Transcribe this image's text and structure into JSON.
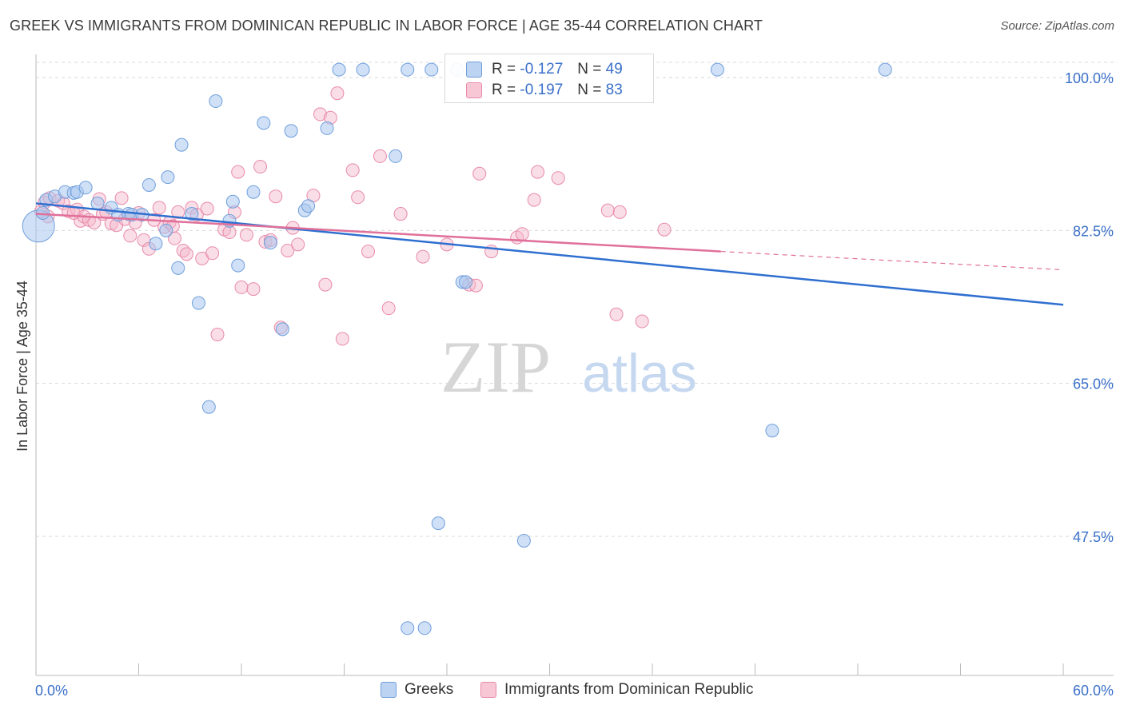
{
  "title": "GREEK VS IMMIGRANTS FROM DOMINICAN REPUBLIC IN LABOR FORCE | AGE 35-44 CORRELATION CHART",
  "source": "Source: ZipAtlas.com",
  "watermark": {
    "zip": "ZIP",
    "atlas": "atlas"
  },
  "colors": {
    "blue_fill": "#a9c6ee",
    "blue_stroke": "#6f9fdc",
    "blue_line": "#2f6fd0",
    "pink_fill": "#f5b6ca",
    "pink_stroke": "#e88aa9",
    "pink_line": "#e0709a",
    "axis_label": "#3a6fc9",
    "grid": "#d9d9d9"
  },
  "stats": {
    "r_label": "R =",
    "n_label": "N =",
    "rows": [
      {
        "series": "Greeks",
        "r": "-0.127",
        "n": "49"
      },
      {
        "series": "Immigrants from Dominican Republic",
        "r": "-0.197",
        "n": "83"
      }
    ]
  },
  "legend": [
    "Greeks",
    "Immigrants from Dominican Republic"
  ],
  "chart_data": {
    "type": "scatter",
    "title": "GREEK VS IMMIGRANTS FROM DOMINICAN REPUBLIC IN LABOR FORCE | AGE 35-44 CORRELATION CHART",
    "xlabel": "",
    "ylabel": "In Labor Force | Age 35-44",
    "xlim": [
      0,
      60
    ],
    "ylim": [
      30,
      101.5
    ],
    "x_tick_labels": [
      "0.0%",
      "60.0%"
    ],
    "y_ticks": [
      100.0,
      82.5,
      65.0,
      47.5
    ],
    "y_tick_labels": [
      "100.0%",
      "82.5%",
      "65.0%",
      "47.5%"
    ],
    "grid": true,
    "legend_position": "bottom",
    "series": [
      {
        "name": "Greeks",
        "r": -0.127,
        "n": 49,
        "trend": {
          "x": [
            0,
            60
          ],
          "y": [
            85.6,
            74.0
          ]
        },
        "points": [
          [
            0.4,
            84.5
          ],
          [
            0.6,
            86.0
          ],
          [
            1.1,
            86.4
          ],
          [
            1.7,
            86.9
          ],
          [
            2.2,
            86.8
          ],
          [
            2.4,
            86.9
          ],
          [
            2.9,
            87.4
          ],
          [
            3.6,
            85.6
          ],
          [
            4.4,
            85.1
          ],
          [
            4.8,
            84.3
          ],
          [
            5.4,
            84.4
          ],
          [
            5.6,
            84.3
          ],
          [
            6.2,
            84.3
          ],
          [
            6.6,
            87.7
          ],
          [
            7.0,
            81.0
          ],
          [
            7.6,
            82.5
          ],
          [
            7.7,
            88.6
          ],
          [
            8.3,
            78.2
          ],
          [
            8.5,
            92.3
          ],
          [
            9.1,
            84.4
          ],
          [
            9.5,
            74.2
          ],
          [
            10.5,
            97.3
          ],
          [
            11.3,
            83.6
          ],
          [
            11.5,
            85.8
          ],
          [
            11.8,
            78.5
          ],
          [
            12.7,
            86.9
          ],
          [
            13.3,
            94.8
          ],
          [
            13.7,
            81.1
          ],
          [
            14.4,
            71.2
          ],
          [
            14.9,
            93.9
          ],
          [
            15.7,
            84.8
          ],
          [
            15.9,
            85.3
          ],
          [
            17.0,
            94.2
          ],
          [
            17.7,
            100.9
          ],
          [
            19.1,
            100.9
          ],
          [
            21.0,
            91.0
          ],
          [
            21.7,
            100.9
          ],
          [
            23.1,
            100.9
          ],
          [
            23.5,
            49.0
          ],
          [
            24.9,
            76.6
          ],
          [
            25.1,
            76.6
          ],
          [
            28.5,
            47.0
          ],
          [
            39.8,
            100.9
          ],
          [
            43.0,
            59.6
          ],
          [
            49.6,
            100.9
          ],
          [
            21.7,
            37.0
          ],
          [
            22.7,
            37.0
          ],
          [
            10.1,
            62.3
          ],
          [
            24.6,
            100.9
          ]
        ]
      },
      {
        "name": "Immigrants from Dominican Republic",
        "r": -0.197,
        "n": 83,
        "trend": {
          "x": [
            0,
            40
          ],
          "y": [
            84.4,
            80.1
          ]
        },
        "trend_dashed": {
          "x": [
            40,
            60
          ],
          "y": [
            80.1,
            78.0
          ]
        },
        "points": [
          [
            0.3,
            84.7
          ],
          [
            0.5,
            85.7
          ],
          [
            0.8,
            86.2
          ],
          [
            1.3,
            85.9
          ],
          [
            1.6,
            85.6
          ],
          [
            1.9,
            84.7
          ],
          [
            2.4,
            84.9
          ],
          [
            2.6,
            83.6
          ],
          [
            2.8,
            84.1
          ],
          [
            3.1,
            83.7
          ],
          [
            3.4,
            83.4
          ],
          [
            3.7,
            86.1
          ],
          [
            3.9,
            84.4
          ],
          [
            4.1,
            84.6
          ],
          [
            4.4,
            83.3
          ],
          [
            4.7,
            83.1
          ],
          [
            5.0,
            86.2
          ],
          [
            5.2,
            83.8
          ],
          [
            5.5,
            81.9
          ],
          [
            5.8,
            83.4
          ],
          [
            6.0,
            84.5
          ],
          [
            6.3,
            81.4
          ],
          [
            6.6,
            80.4
          ],
          [
            6.9,
            83.7
          ],
          [
            7.2,
            85.1
          ],
          [
            7.5,
            82.9
          ],
          [
            7.8,
            83.4
          ],
          [
            8.1,
            81.6
          ],
          [
            8.3,
            84.6
          ],
          [
            8.6,
            80.2
          ],
          [
            8.8,
            79.8
          ],
          [
            9.1,
            85.1
          ],
          [
            9.4,
            84.3
          ],
          [
            9.7,
            79.3
          ],
          [
            10.0,
            85.0
          ],
          [
            10.3,
            79.9
          ],
          [
            10.6,
            70.6
          ],
          [
            11.0,
            82.6
          ],
          [
            11.3,
            82.3
          ],
          [
            11.6,
            84.6
          ],
          [
            11.8,
            89.2
          ],
          [
            12.0,
            76.0
          ],
          [
            12.3,
            82.0
          ],
          [
            12.7,
            75.8
          ],
          [
            13.1,
            89.8
          ],
          [
            13.4,
            81.2
          ],
          [
            13.7,
            81.4
          ],
          [
            14.0,
            86.4
          ],
          [
            14.3,
            71.4
          ],
          [
            14.7,
            80.2
          ],
          [
            15.0,
            82.8
          ],
          [
            15.3,
            80.9
          ],
          [
            16.2,
            86.5
          ],
          [
            16.6,
            95.8
          ],
          [
            16.9,
            76.3
          ],
          [
            17.2,
            95.4
          ],
          [
            17.6,
            98.2
          ],
          [
            17.9,
            70.1
          ],
          [
            18.5,
            89.4
          ],
          [
            18.8,
            86.3
          ],
          [
            19.4,
            80.1
          ],
          [
            20.1,
            91.0
          ],
          [
            20.6,
            73.6
          ],
          [
            21.3,
            84.4
          ],
          [
            22.6,
            79.5
          ],
          [
            24.0,
            80.9
          ],
          [
            25.3,
            76.3
          ],
          [
            25.7,
            76.2
          ],
          [
            25.9,
            89.0
          ],
          [
            26.6,
            80.1
          ],
          [
            28.1,
            81.7
          ],
          [
            28.4,
            82.1
          ],
          [
            29.1,
            86.0
          ],
          [
            29.3,
            89.2
          ],
          [
            30.5,
            88.5
          ],
          [
            33.4,
            84.8
          ],
          [
            33.9,
            72.9
          ],
          [
            34.1,
            84.6
          ],
          [
            35.4,
            72.1
          ],
          [
            36.7,
            82.6
          ],
          [
            0.7,
            84.1
          ],
          [
            2.2,
            84.5
          ],
          [
            8.0,
            83.0
          ]
        ]
      }
    ]
  }
}
